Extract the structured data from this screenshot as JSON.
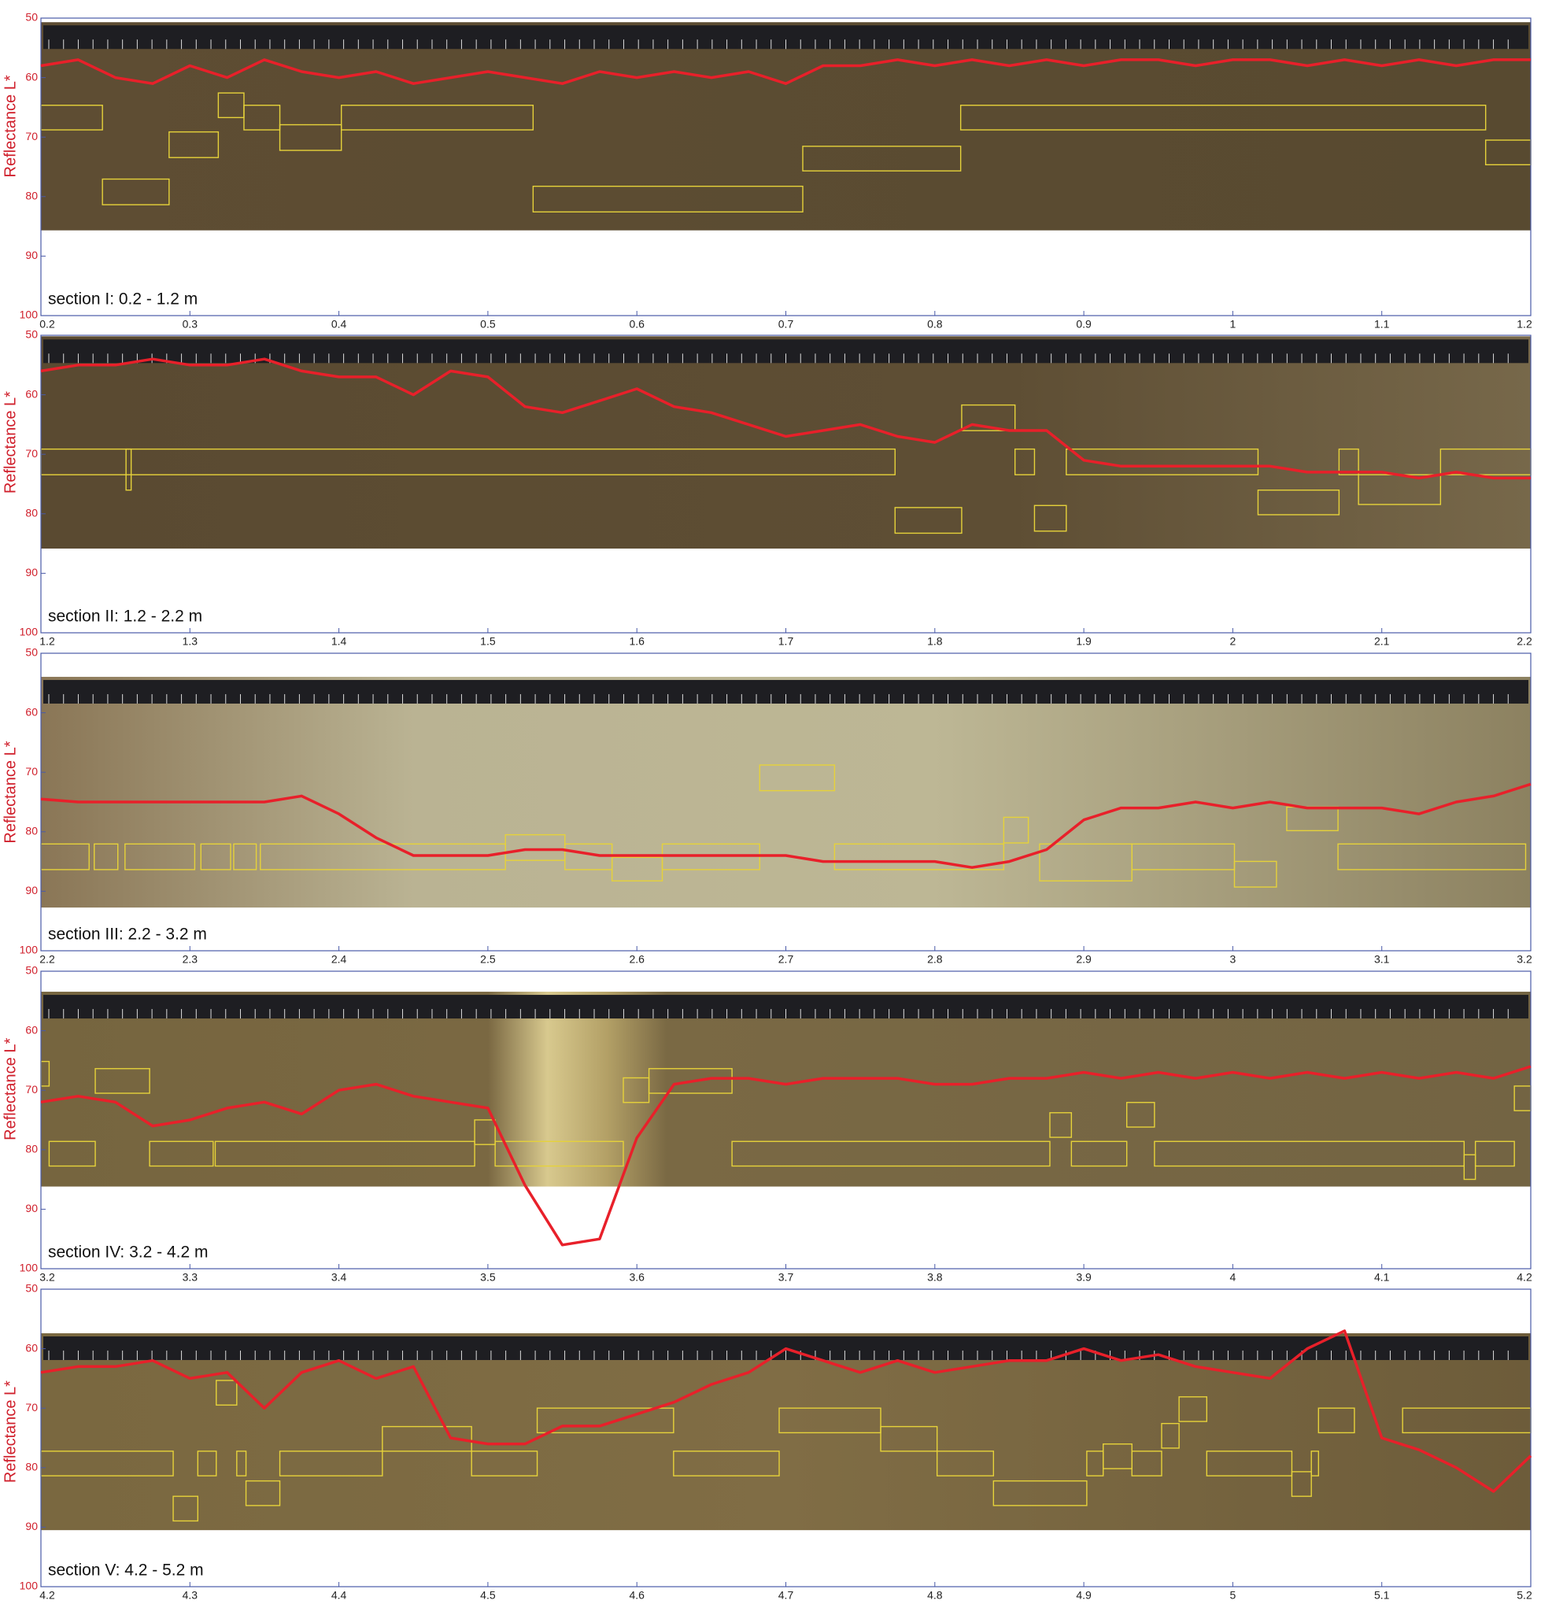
{
  "chart_data": [
    {
      "type": "line",
      "y_label": "Reflectance L*",
      "annotation": "section I: 0.2 - 1.2 m",
      "x": [
        0.2,
        0.225,
        0.25,
        0.275,
        0.3,
        0.325,
        0.35,
        0.375,
        0.4,
        0.425,
        0.45,
        0.475,
        0.5,
        0.525,
        0.55,
        0.575,
        0.6,
        0.625,
        0.65,
        0.675,
        0.7,
        0.725,
        0.75,
        0.775,
        0.8,
        0.825,
        0.85,
        0.875,
        0.9,
        0.925,
        0.95,
        0.975,
        1,
        1.025,
        1.05,
        1.075,
        1.1,
        1.125,
        1.15,
        1.175,
        1.2
      ],
      "series": [
        {
          "color": "#e8202a",
          "values": [
            58,
            57,
            60,
            61,
            58,
            60,
            57,
            59,
            60,
            59,
            61,
            60,
            59,
            60,
            61,
            59,
            60,
            59,
            60,
            59,
            61,
            58,
            58,
            57,
            58,
            57,
            58,
            57,
            58,
            57,
            57,
            58,
            57,
            57,
            58,
            57,
            58,
            57,
            58,
            57,
            57
          ]
        }
      ],
      "xlim": [
        0.2,
        1.2
      ],
      "xticks": [
        0.2,
        0.3,
        0.4,
        0.5,
        0.6,
        0.7,
        0.8,
        0.9,
        1,
        1.1,
        1.2
      ],
      "ylim": [
        50,
        100
      ],
      "y_inverted": true,
      "yticks": [
        50,
        60,
        70,
        80,
        90,
        100
      ]
    },
    {
      "type": "line",
      "y_label": "Reflectance L*",
      "annotation": "section II: 1.2 - 2.2 m",
      "x": [
        1.2,
        1.225,
        1.25,
        1.275,
        1.3,
        1.325,
        1.35,
        1.375,
        1.4,
        1.425,
        1.45,
        1.475,
        1.5,
        1.525,
        1.55,
        1.575,
        1.6,
        1.625,
        1.65,
        1.675,
        1.7,
        1.725,
        1.75,
        1.775,
        1.8,
        1.825,
        1.85,
        1.875,
        1.9,
        1.925,
        1.95,
        1.975,
        2,
        2.025,
        2.05,
        2.075,
        2.1,
        2.125,
        2.15,
        2.175,
        2.2
      ],
      "series": [
        {
          "color": "#e8202a",
          "values": [
            56,
            55,
            55,
            54,
            55,
            55,
            54,
            56,
            57,
            57,
            60,
            56,
            57,
            62,
            63,
            61,
            59,
            62,
            63,
            65,
            67,
            66,
            65,
            67,
            68,
            65,
            66,
            66,
            71,
            72,
            72,
            72,
            72,
            72,
            73,
            73,
            73,
            74,
            73,
            74,
            74
          ]
        }
      ],
      "xlim": [
        1.2,
        2.2
      ],
      "xticks": [
        1.2,
        1.3,
        1.4,
        1.5,
        1.6,
        1.7,
        1.8,
        1.9,
        2,
        2.1,
        2.2
      ],
      "ylim": [
        50,
        100
      ],
      "y_inverted": true,
      "yticks": [
        50,
        60,
        70,
        80,
        90,
        100
      ]
    },
    {
      "type": "line",
      "y_label": "Reflectance L*",
      "annotation": "section III: 2.2 - 3.2 m",
      "x": [
        2.2,
        2.225,
        2.25,
        2.275,
        2.3,
        2.325,
        2.35,
        2.375,
        2.4,
        2.425,
        2.45,
        2.475,
        2.5,
        2.525,
        2.55,
        2.575,
        2.6,
        2.625,
        2.65,
        2.675,
        2.7,
        2.725,
        2.75,
        2.775,
        2.8,
        2.825,
        2.85,
        2.875,
        2.9,
        2.925,
        2.95,
        2.975,
        3,
        3.025,
        3.05,
        3.075,
        3.1,
        3.125,
        3.15,
        3.175,
        3.2
      ],
      "series": [
        {
          "color": "#e8202a",
          "values": [
            74.5,
            75,
            75,
            75,
            75,
            75,
            75,
            74,
            77,
            81,
            84,
            84,
            84,
            83,
            83,
            84,
            84,
            84,
            84,
            84,
            84,
            85,
            85,
            85,
            85,
            86,
            85,
            83,
            78,
            76,
            76,
            75,
            76,
            75,
            76,
            76,
            76,
            77,
            75,
            74,
            72
          ]
        }
      ],
      "xlim": [
        2.2,
        3.2
      ],
      "xticks": [
        2.2,
        2.3,
        2.4,
        2.5,
        2.6,
        2.7,
        2.8,
        2.9,
        3,
        3.1,
        3.2
      ],
      "ylim": [
        50,
        100
      ],
      "y_inverted": true,
      "yticks": [
        50,
        60,
        70,
        80,
        90,
        100
      ]
    },
    {
      "type": "line",
      "y_label": "Reflectance L*",
      "annotation": "section IV: 3.2 - 4.2 m",
      "x": [
        3.2,
        3.225,
        3.25,
        3.275,
        3.3,
        3.325,
        3.35,
        3.375,
        3.4,
        3.425,
        3.45,
        3.475,
        3.5,
        3.525,
        3.55,
        3.575,
        3.6,
        3.625,
        3.65,
        3.675,
        3.7,
        3.725,
        3.75,
        3.775,
        3.8,
        3.825,
        3.85,
        3.875,
        3.9,
        3.925,
        3.95,
        3.975,
        4,
        4.025,
        4.05,
        4.075,
        4.1,
        4.125,
        4.15,
        4.175,
        4.2
      ],
      "series": [
        {
          "color": "#e8202a",
          "values": [
            72,
            71,
            72,
            76,
            75,
            73,
            72,
            74,
            70,
            69,
            71,
            72,
            73,
            86,
            96,
            95,
            78,
            69,
            68,
            68,
            69,
            68,
            68,
            68,
            69,
            69,
            68,
            68,
            67,
            68,
            67,
            68,
            67,
            68,
            67,
            68,
            67,
            68,
            67,
            68,
            66
          ]
        }
      ],
      "xlim": [
        3.2,
        4.2
      ],
      "xticks": [
        3.2,
        3.3,
        3.4,
        3.5,
        3.6,
        3.7,
        3.8,
        3.9,
        4,
        4.1,
        4.2
      ],
      "ylim": [
        50,
        100
      ],
      "y_inverted": true,
      "yticks": [
        50,
        60,
        70,
        80,
        90,
        100
      ]
    },
    {
      "type": "line",
      "y_label": "Reflectance L*",
      "annotation": "section V: 4.2 - 5.2 m",
      "x": [
        4.2,
        4.225,
        4.25,
        4.275,
        4.3,
        4.325,
        4.35,
        4.375,
        4.4,
        4.425,
        4.45,
        4.475,
        4.5,
        4.525,
        4.55,
        4.575,
        4.6,
        4.625,
        4.65,
        4.675,
        4.7,
        4.725,
        4.75,
        4.775,
        4.8,
        4.825,
        4.85,
        4.875,
        4.9,
        4.925,
        4.95,
        4.975,
        5,
        5.025,
        5.05,
        5.075,
        5.1,
        5.125,
        5.15,
        5.175,
        5.2
      ],
      "series": [
        {
          "color": "#e8202a",
          "values": [
            64,
            63,
            63,
            62,
            65,
            64,
            70,
            64,
            62,
            65,
            63,
            75,
            76,
            76,
            73,
            73,
            71,
            69,
            66,
            64,
            60,
            62,
            64,
            62,
            64,
            63,
            62,
            62,
            60,
            62,
            61,
            63,
            64,
            65,
            60,
            57,
            75,
            77,
            80,
            84,
            78
          ]
        }
      ],
      "xlim": [
        4.2,
        5.2
      ],
      "xticks": [
        4.2,
        4.3,
        4.4,
        4.5,
        4.6,
        4.7,
        4.8,
        4.9,
        5,
        5.1,
        5.2
      ],
      "ylim": [
        50,
        100
      ],
      "y_inverted": true,
      "yticks": [
        50,
        60,
        70,
        80,
        90,
        100
      ]
    }
  ]
}
